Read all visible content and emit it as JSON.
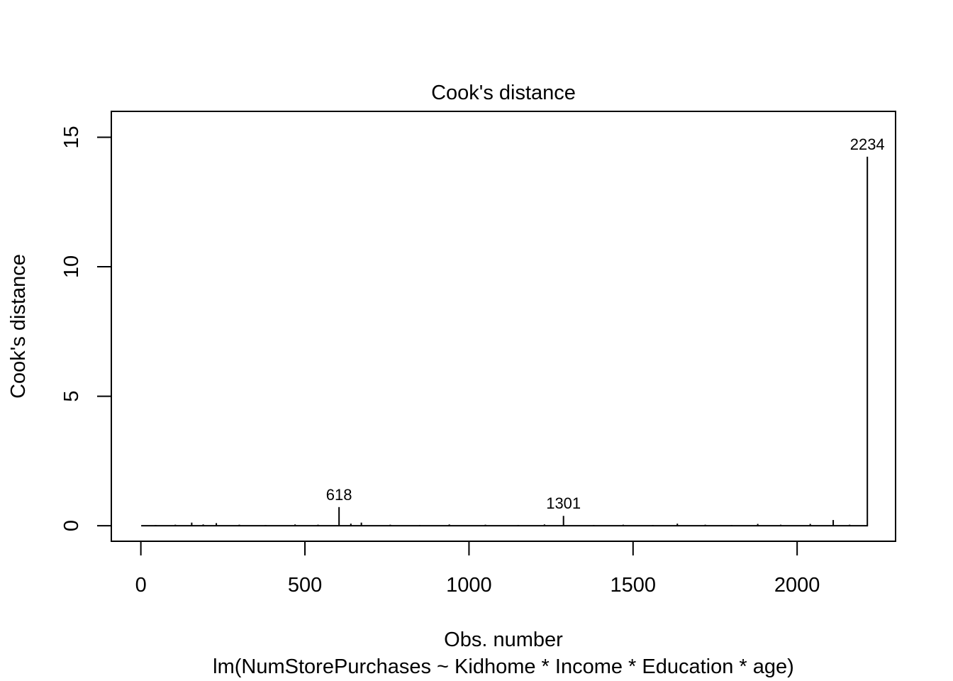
{
  "chart_data": {
    "type": "bar",
    "title": "Cook's distance",
    "xlabel": "Obs. number",
    "subtitle": "lm(NumStorePurchases ~ Kidhome * Income * Education * age)",
    "ylabel": "Cook's distance",
    "xlim": [
      -90,
      2300
    ],
    "ylim": [
      -0.6,
      16
    ],
    "x_ticks": [
      0,
      500,
      1000,
      1500,
      2000
    ],
    "x_tick_labels": [
      "0",
      "500",
      "1000",
      "1500",
      "2000"
    ],
    "y_ticks": [
      0,
      5,
      10,
      15
    ],
    "y_tick_labels": [
      "0",
      "5",
      "10",
      "15"
    ],
    "n_obs": 2216,
    "grid": false,
    "legend": "none",
    "bars": [
      {
        "x": 45,
        "y": 0.03
      },
      {
        "x": 105,
        "y": 0.04
      },
      {
        "x": 155,
        "y": 0.12
      },
      {
        "x": 190,
        "y": 0.05
      },
      {
        "x": 230,
        "y": 0.1
      },
      {
        "x": 300,
        "y": 0.04
      },
      {
        "x": 380,
        "y": 0.03
      },
      {
        "x": 470,
        "y": 0.05
      },
      {
        "x": 540,
        "y": 0.04
      },
      {
        "x": 604,
        "y": 0.72
      },
      {
        "x": 640,
        "y": 0.08
      },
      {
        "x": 672,
        "y": 0.12
      },
      {
        "x": 760,
        "y": 0.04
      },
      {
        "x": 850,
        "y": 0.03
      },
      {
        "x": 940,
        "y": 0.05
      },
      {
        "x": 1050,
        "y": 0.04
      },
      {
        "x": 1150,
        "y": 0.03
      },
      {
        "x": 1230,
        "y": 0.05
      },
      {
        "x": 1288,
        "y": 0.38
      },
      {
        "x": 1380,
        "y": 0.03
      },
      {
        "x": 1470,
        "y": 0.04
      },
      {
        "x": 1560,
        "y": 0.03
      },
      {
        "x": 1635,
        "y": 0.08
      },
      {
        "x": 1720,
        "y": 0.04
      },
      {
        "x": 1800,
        "y": 0.03
      },
      {
        "x": 1880,
        "y": 0.07
      },
      {
        "x": 1950,
        "y": 0.04
      },
      {
        "x": 2040,
        "y": 0.07
      },
      {
        "x": 2110,
        "y": 0.22
      },
      {
        "x": 2160,
        "y": 0.04
      },
      {
        "x": 2214,
        "y": 14.25
      }
    ],
    "labeled_points": [
      {
        "label": "618",
        "x": 604,
        "y": 0.72
      },
      {
        "label": "1301",
        "x": 1288,
        "y": 0.38
      },
      {
        "label": "2234",
        "x": 2214,
        "y": 14.25
      }
    ]
  }
}
